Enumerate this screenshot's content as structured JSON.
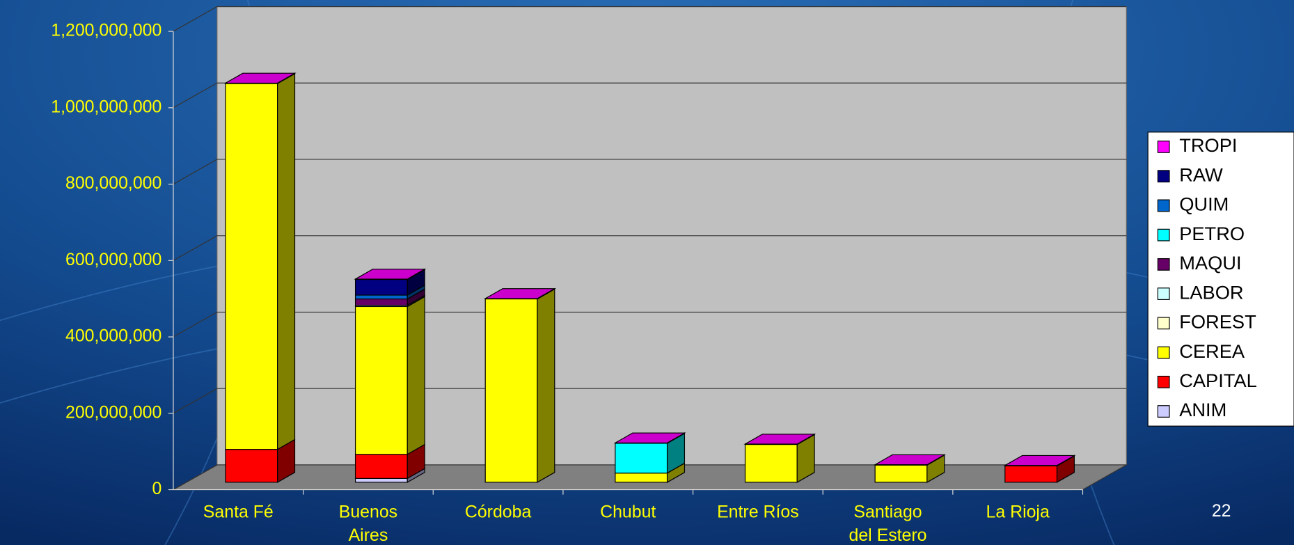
{
  "chart_data": {
    "type": "bar3d_stacked",
    "categories": [
      "Santa Fé",
      "Buenos Aires",
      "Córdoba",
      "Chubut",
      "Entre Ríos",
      "Santiago del Estero",
      "La Rioja"
    ],
    "series": [
      {
        "name": "ANIM",
        "color": "#ccccff",
        "values": [
          0,
          10000000,
          0,
          0,
          0,
          0,
          0
        ]
      },
      {
        "name": "CAPITAL",
        "color": "#ff0000",
        "values": [
          86000000,
          63000000,
          0,
          0,
          0,
          0,
          43000000
        ]
      },
      {
        "name": "CEREA",
        "color": "#ffff00",
        "values": [
          958000000,
          387000000,
          480000000,
          24000000,
          99000000,
          45000000,
          0
        ]
      },
      {
        "name": "FOREST",
        "color": "#ffffcc",
        "values": [
          0,
          0,
          0,
          0,
          0,
          0,
          0
        ]
      },
      {
        "name": "LABOR",
        "color": "#ccffff",
        "values": [
          0,
          3000000,
          0,
          0,
          0,
          0,
          0
        ]
      },
      {
        "name": "MAQUI",
        "color": "#660066",
        "values": [
          0,
          17000000,
          0,
          0,
          0,
          0,
          0
        ]
      },
      {
        "name": "PETRO",
        "color": "#00ffff",
        "values": [
          0,
          0,
          0,
          78000000,
          0,
          0,
          0
        ]
      },
      {
        "name": "QUIM",
        "color": "#0066cc",
        "values": [
          0,
          10000000,
          0,
          0,
          0,
          0,
          0
        ]
      },
      {
        "name": "RAW",
        "color": "#000080",
        "values": [
          0,
          41000000,
          0,
          0,
          0,
          0,
          0
        ]
      },
      {
        "name": "TROPI",
        "color": "#ff00ff",
        "values": [
          1000000,
          1000000,
          1000000,
          1000000,
          1000000,
          1000000,
          1000000
        ]
      }
    ],
    "ylim": [
      0,
      1200000000
    ],
    "yticks": [
      0,
      {
        "value": 200000000,
        "label": "200,000,000"
      },
      {
        "value": 400000000,
        "label": "400,000,000"
      },
      {
        "value": 600000000,
        "label": "600,000,000"
      },
      {
        "value": 800000000,
        "label": "800,000,000"
      },
      {
        "value": 1000000000,
        "label": "1,000,000,000"
      },
      {
        "value": 1200000000,
        "label": "1,200,000,000"
      }
    ],
    "grid": true,
    "legend": "right",
    "slide_number": "22"
  }
}
